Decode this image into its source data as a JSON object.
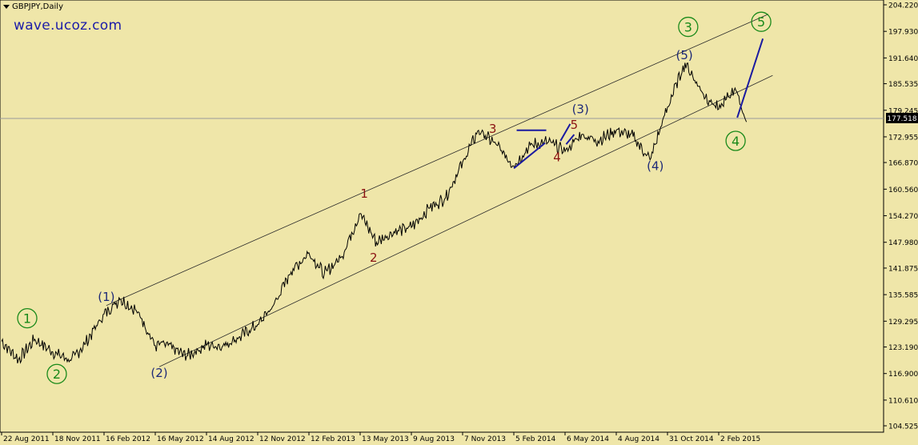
{
  "window": {
    "title": "GBPJPY,Daily"
  },
  "watermark": "wave.ucoz.com",
  "colors": {
    "background": "#efe6a9",
    "price_line": "#000000",
    "channel": "#2a2a2a",
    "wave_green": "#1a8a1a",
    "wave_navy": "#1e2a78",
    "wave_red": "#8b1212",
    "annotation_lines": "#1a1aa0",
    "price_label_bg": "#000000",
    "price_label_fg": "#ffffff"
  },
  "axis": {
    "y_ticks": [
      "204.220",
      "197.930",
      "191.640",
      "185.535",
      "179.245",
      "172.955",
      "166.870",
      "160.560",
      "154.270",
      "147.980",
      "141.875",
      "135.585",
      "129.295",
      "123.190",
      "116.900",
      "110.610",
      "104.525"
    ],
    "x_ticks": [
      "22 Aug 2011",
      "18 Nov 2011",
      "16 Feb 2012",
      "16 May 2012",
      "14 Aug 2012",
      "12 Nov 2012",
      "12 Feb 2013",
      "13 May 2013",
      "9 Aug 2013",
      "7 Nov 2013",
      "5 Feb 2014",
      "6 May 2014",
      "4 Aug 2014",
      "31 Oct 2014",
      "2 Feb 2015"
    ]
  },
  "current_price": "177.518",
  "chart_data": {
    "type": "line",
    "title": "GBPJPY,Daily",
    "xlabel": "",
    "ylabel": "",
    "ylim": [
      102.0,
      205.0
    ],
    "x": [
      "2011-08-22",
      "2011-09-20",
      "2011-10-18",
      "2011-11-18",
      "2011-12-20",
      "2012-01-13",
      "2012-02-16",
      "2012-03-15",
      "2012-04-16",
      "2012-05-16",
      "2012-06-01",
      "2012-07-10",
      "2012-08-14",
      "2012-09-12",
      "2012-10-10",
      "2012-11-12",
      "2012-12-10",
      "2013-01-11",
      "2013-02-12",
      "2013-03-11",
      "2013-04-10",
      "2013-05-13",
      "2013-06-10",
      "2013-07-10",
      "2013-08-09",
      "2013-09-09",
      "2013-10-08",
      "2013-11-07",
      "2013-12-05",
      "2014-01-06",
      "2014-02-05",
      "2014-03-06",
      "2014-04-07",
      "2014-05-06",
      "2014-06-04",
      "2014-07-03",
      "2014-08-04",
      "2014-09-02",
      "2014-10-01",
      "2014-10-31",
      "2014-12-02",
      "2015-01-05",
      "2015-02-02",
      "2015-03-04",
      "2015-03-25"
    ],
    "series": [
      {
        "values": [
          124.5,
          120.2,
          125.0,
          122.0,
          120.0,
          123.8,
          131.0,
          134.5,
          131.5,
          123.5,
          124.0,
          121.0,
          123.6,
          123.5,
          125.5,
          128.5,
          133.0,
          141.0,
          145.5,
          140.5,
          144.5,
          154.8,
          148.0,
          150.5,
          151.5,
          156.0,
          158.5,
          167.0,
          174.5,
          171.0,
          166.0,
          171.0,
          171.8,
          169.5,
          173.5,
          172.0,
          174.5,
          173.0,
          167.5,
          180.0,
          190.5,
          183.0,
          179.5,
          184.5,
          176.5
        ]
      }
    ],
    "wave_labels": [
      {
        "text": "1",
        "group": "green-circle",
        "date": "2011-10-05",
        "price": 130.0
      },
      {
        "text": "2",
        "group": "green-circle",
        "date": "2011-11-25",
        "price": 116.8
      },
      {
        "text": "(1)",
        "group": "navy",
        "date": "2012-02-20",
        "price": 135.0
      },
      {
        "text": "(2)",
        "group": "navy",
        "date": "2012-05-23",
        "price": 117.0
      },
      {
        "text": "1",
        "group": "red",
        "date": "2013-05-20",
        "price": 159.5
      },
      {
        "text": "2",
        "group": "red",
        "date": "2013-06-05",
        "price": 144.3
      },
      {
        "text": "3",
        "group": "red",
        "date": "2013-12-30",
        "price": 174.8
      },
      {
        "text": "4",
        "group": "red",
        "date": "2014-04-22",
        "price": 168.1
      },
      {
        "text": "5",
        "group": "red",
        "date": "2014-05-22",
        "price": 175.8
      },
      {
        "text": "(3)",
        "group": "navy",
        "date": "2014-06-02",
        "price": 179.5
      },
      {
        "text": "(4)",
        "group": "navy",
        "date": "2014-10-10",
        "price": 166.0
      },
      {
        "text": "(5)",
        "group": "navy",
        "date": "2014-12-01",
        "price": 192.3
      },
      {
        "text": "3",
        "group": "green-circle",
        "date": "2014-12-08",
        "price": 199.0
      },
      {
        "text": "4",
        "group": "green-circle",
        "date": "2015-03-05",
        "price": 172.0
      },
      {
        "text": "5",
        "group": "green-circle",
        "date": "2015-04-21",
        "price": 200.2
      }
    ],
    "channel_lines": [
      {
        "from": {
          "date": "2012-02-20",
          "price": 133.0
        },
        "to": {
          "date": "2015-05-04",
          "price": 202.0
        }
      },
      {
        "from": {
          "date": "2012-05-23",
          "price": 118.5
        },
        "to": {
          "date": "2015-05-12",
          "price": 187.5
        }
      }
    ],
    "annotation_lines": [
      {
        "from": {
          "date": "2014-02-05",
          "price": 165.5
        },
        "to": {
          "date": "2014-04-01",
          "price": 171.5
        }
      },
      {
        "from": {
          "date": "2014-02-10",
          "price": 174.5
        },
        "to": {
          "date": "2014-04-03",
          "price": 174.5
        }
      },
      {
        "from": {
          "date": "2014-04-28",
          "price": 172.0
        },
        "to": {
          "date": "2014-05-15",
          "price": 176.0
        }
      },
      {
        "from": {
          "date": "2014-05-08",
          "price": 171.2
        },
        "to": {
          "date": "2014-05-22",
          "price": 173.5
        }
      },
      {
        "from": {
          "date": "2015-03-08",
          "price": 177.5
        },
        "to": {
          "date": "2015-04-24",
          "price": 196.2
        }
      }
    ]
  }
}
